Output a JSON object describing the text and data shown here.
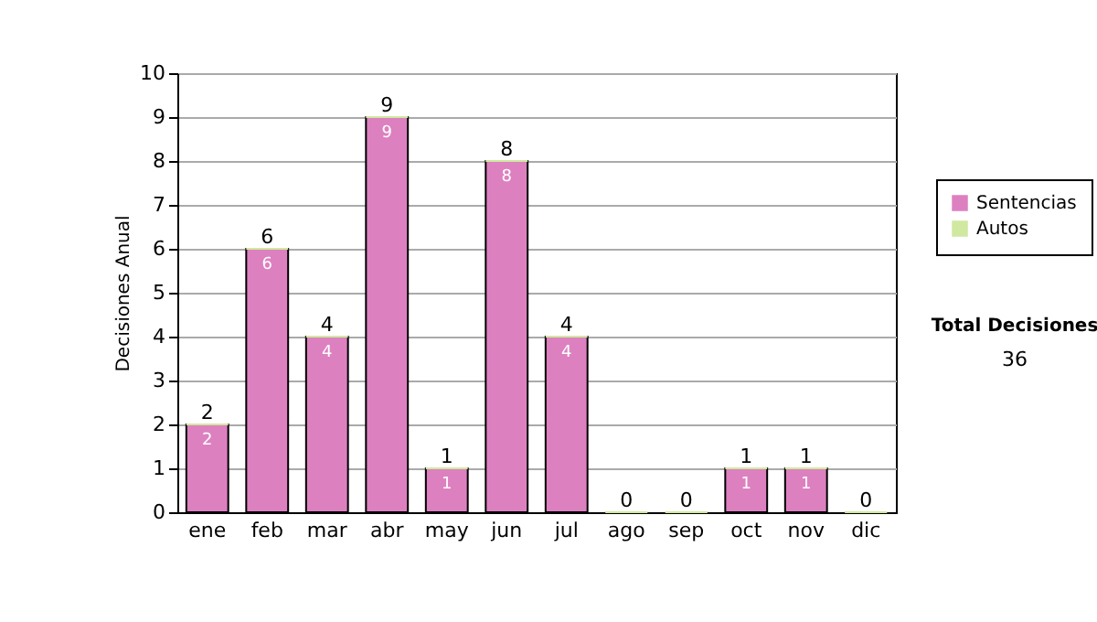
{
  "chart_data": {
    "type": "bar",
    "ylabel": "Decisiones Anual",
    "stacked": true,
    "categories": [
      "ene",
      "feb",
      "mar",
      "abr",
      "may",
      "jun",
      "jul",
      "ago",
      "sep",
      "oct",
      "nov",
      "dic"
    ],
    "series": [
      {
        "name": "Sentencias",
        "color": "#dd80c0",
        "values": [
          2,
          6,
          4,
          9,
          1,
          8,
          4,
          0,
          0,
          1,
          1,
          0
        ],
        "value_labels": [
          "2",
          "6",
          "4",
          "9",
          "1",
          "8",
          "4",
          null,
          null,
          "1",
          "1",
          null
        ]
      },
      {
        "name": "Autos",
        "color": "#d0e8a0",
        "values": [
          0,
          0,
          0,
          0,
          0,
          0,
          0,
          0,
          0,
          0,
          0,
          0
        ]
      }
    ],
    "totals": [
      "2",
      "6",
      "4",
      "9",
      "1",
      "8",
      "4",
      "0",
      "0",
      "1",
      "1",
      "0"
    ],
    "ylim": [
      0,
      10
    ],
    "yticks": [
      0,
      1,
      2,
      3,
      4,
      5,
      6,
      7,
      8,
      9,
      10
    ],
    "grid": "y",
    "legend": "right",
    "annotations": [
      "Total Decisiones",
      "36"
    ]
  }
}
